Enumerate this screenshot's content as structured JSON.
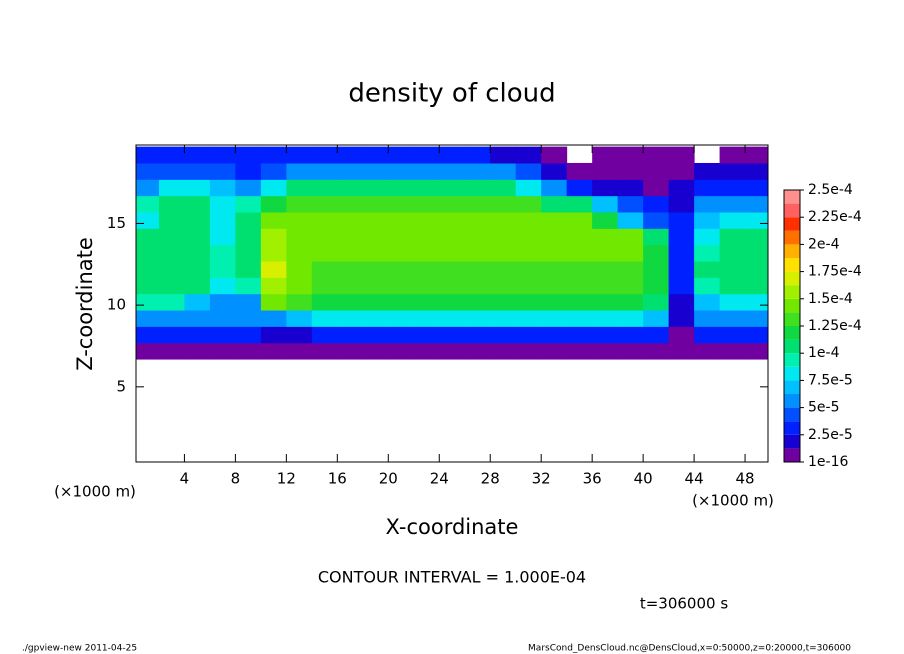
{
  "chart_data": {
    "type": "heatmap",
    "title": "density of cloud",
    "xlabel": "X-coordinate",
    "ylabel": "Z-coordinate",
    "x_unit": "(×1000 m)",
    "z_unit": "(×1000 m)",
    "annotation": "CONTOUR INTERVAL = 1.000E-04",
    "time_label": "t=306000 s",
    "footer_left": "./gpview-new  2011-04-25",
    "footer_right": "MarsCond_DensCloud.nc@DensCloud,x=0:50000,z=0:20000,t=306000",
    "xlim": [
      0.2,
      49.8
    ],
    "ylim": [
      0.4,
      19.8
    ],
    "xticks": [
      4,
      8,
      12,
      16,
      20,
      24,
      28,
      32,
      36,
      40,
      44,
      48
    ],
    "yticks": [
      5,
      10,
      15
    ],
    "x": [
      1,
      3,
      5,
      7,
      9,
      11,
      13,
      15,
      17,
      19,
      21,
      23,
      25,
      27,
      29,
      31,
      33,
      35,
      37,
      39,
      41,
      43,
      45,
      47,
      49
    ],
    "z": [
      7.2,
      8.2,
      9.2,
      10.2,
      11.2,
      12.2,
      13.2,
      14.2,
      15.2,
      16.2,
      17.2,
      18.2,
      19.2
    ],
    "values": [
      [
        1e-05,
        1e-05,
        1e-05,
        1e-05,
        1e-05,
        1e-05,
        1e-05,
        1e-05,
        1e-05,
        1e-05,
        1e-05,
        1e-05,
        1e-05,
        1e-05,
        1e-05,
        1e-05,
        1e-05,
        1e-05,
        1e-05,
        1e-05,
        1e-05,
        1e-05,
        1e-05,
        1e-05,
        1e-05
      ],
      [
        3e-05,
        3e-05,
        3e-05,
        3e-05,
        2.5e-05,
        1.5e-05,
        2e-05,
        3e-05,
        3e-05,
        3e-05,
        3e-05,
        3e-05,
        3e-05,
        3e-05,
        3e-05,
        3e-05,
        3e-05,
        3e-05,
        3e-05,
        3e-05,
        3e-05,
        1e-05,
        3e-05,
        3e-05,
        3e-05
      ],
      [
        6e-05,
        6e-05,
        5e-05,
        5e-05,
        5e-05,
        6e-05,
        7e-05,
        8e-05,
        8e-05,
        8e-05,
        8e-05,
        8e-05,
        8e-05,
        8e-05,
        8e-05,
        8e-05,
        8e-05,
        8e-05,
        8e-05,
        8e-05,
        7e-05,
        2e-05,
        5e-05,
        6e-05,
        6e-05
      ],
      [
        9e-05,
        9e-05,
        7e-05,
        6e-05,
        6e-05,
        0.000145,
        0.00013,
        0.00012,
        0.00012,
        0.00012,
        0.00012,
        0.00012,
        0.00012,
        0.00012,
        0.00012,
        0.00012,
        0.00012,
        0.00012,
        0.00012,
        0.00012,
        0.000105,
        2e-05,
        7e-05,
        8.5e-05,
        8.5e-05
      ],
      [
        0.000105,
        0.000105,
        0.0001,
        8e-05,
        9e-05,
        0.00016,
        0.00014,
        0.00013,
        0.00013,
        0.00013,
        0.00013,
        0.00013,
        0.00013,
        0.00013,
        0.00013,
        0.00013,
        0.00013,
        0.00013,
        0.00013,
        0.00013,
        0.00012,
        3e-05,
        9e-05,
        0.000105,
        0.000105
      ],
      [
        0.00011,
        0.00011,
        0.000105,
        9e-05,
        0.0001,
        0.000165,
        0.000145,
        0.000135,
        0.000135,
        0.000135,
        0.000135,
        0.000135,
        0.000135,
        0.000135,
        0.000135,
        0.000135,
        0.000135,
        0.000135,
        0.000135,
        0.000135,
        0.00012,
        3e-05,
        0.0001,
        0.000105,
        0.000105
      ],
      [
        0.00011,
        0.00011,
        0.000105,
        9e-05,
        0.000105,
        0.00016,
        0.000145,
        0.000138,
        0.000138,
        0.000138,
        0.000138,
        0.000138,
        0.000138,
        0.000138,
        0.000138,
        0.000138,
        0.000138,
        0.000138,
        0.000138,
        0.000138,
        0.000115,
        3e-05,
        9e-05,
        0.000105,
        0.000105
      ],
      [
        0.000105,
        0.000105,
        0.0001,
        8.5e-05,
        0.00011,
        0.00015,
        0.000145,
        0.000138,
        0.000138,
        0.000138,
        0.000138,
        0.000138,
        0.000138,
        0.000138,
        0.000138,
        0.000138,
        0.000138,
        0.000138,
        0.000138,
        0.000138,
        0.000105,
        3e-05,
        8e-05,
        0.0001,
        0.0001
      ],
      [
        8e-05,
        0.000105,
        0.0001,
        8e-05,
        0.000105,
        0.00014,
        0.000145,
        0.000138,
        0.000138,
        0.000138,
        0.000138,
        0.000138,
        0.000138,
        0.000138,
        0.000138,
        0.000138,
        0.000138,
        0.000138,
        0.00012,
        7e-05,
        4e-05,
        3e-05,
        7e-05,
        8e-05,
        8e-05
      ],
      [
        9e-05,
        0.000105,
        0.0001,
        8e-05,
        9e-05,
        0.00012,
        0.00013,
        0.00013,
        0.00013,
        0.00013,
        0.00013,
        0.00013,
        0.00013,
        0.00013,
        0.00013,
        0.00013,
        0.00011,
        0.000105,
        7e-05,
        4e-05,
        3e-05,
        2e-05,
        5e-05,
        6e-05,
        6e-05
      ],
      [
        6e-05,
        8e-05,
        8e-05,
        7e-05,
        5e-05,
        8e-05,
        0.0001,
        0.00011,
        0.00011,
        0.00011,
        0.00011,
        0.00011,
        0.00011,
        0.00011,
        0.0001,
        8e-05,
        5e-05,
        3e-05,
        2e-05,
        2e-05,
        1e-05,
        2e-05,
        3e-05,
        3e-05,
        3e-05
      ],
      [
        4e-05,
        4e-05,
        4e-05,
        4e-05,
        3e-05,
        4e-05,
        6e-05,
        6e-05,
        6e-05,
        6e-05,
        6e-05,
        6e-05,
        6e-05,
        6e-05,
        5e-05,
        4e-05,
        2e-05,
        1e-05,
        1e-05,
        1e-05,
        1e-05,
        1e-05,
        2e-05,
        2e-05,
        2e-05
      ],
      [
        2.5e-05,
        2.5e-05,
        2.5e-05,
        2.5e-05,
        2.5e-05,
        2.5e-05,
        2.5e-05,
        2.5e-05,
        2.5e-05,
        2.5e-05,
        2.5e-05,
        2.5e-05,
        2.5e-05,
        2.5e-05,
        2e-05,
        1.5e-05,
        1e-05,
        null,
        1e-05,
        1e-05,
        1e-05,
        1e-05,
        null,
        1e-05,
        1e-05
      ]
    ],
    "colorbar": {
      "ticks": [
        {
          "value": 1e-16,
          "label": "1e-16"
        },
        {
          "value": 2.5e-05,
          "label": "2.5e-5"
        },
        {
          "value": 5e-05,
          "label": "5e-5"
        },
        {
          "value": 7.5e-05,
          "label": "7.5e-5"
        },
        {
          "value": 0.0001,
          "label": "1e-4"
        },
        {
          "value": 0.000125,
          "label": "1.25e-4"
        },
        {
          "value": 0.00015,
          "label": "1.5e-4"
        },
        {
          "value": 0.000175,
          "label": "1.75e-4"
        },
        {
          "value": 0.0002,
          "label": "2e-4"
        },
        {
          "value": 0.000225,
          "label": "2.25e-4"
        },
        {
          "value": 0.00025,
          "label": "2.5e-4"
        }
      ],
      "colors": [
        "#7000a0",
        "#1800d0",
        "#0020ff",
        "#0050ff",
        "#0090ff",
        "#00c0ff",
        "#00e8f0",
        "#00f0b0",
        "#00e070",
        "#10d840",
        "#40e020",
        "#70e800",
        "#a0f000",
        "#d8f000",
        "#ffe000",
        "#ffb000",
        "#ff7000",
        "#ff3000",
        "#ff6060",
        "#ff9090"
      ]
    }
  }
}
